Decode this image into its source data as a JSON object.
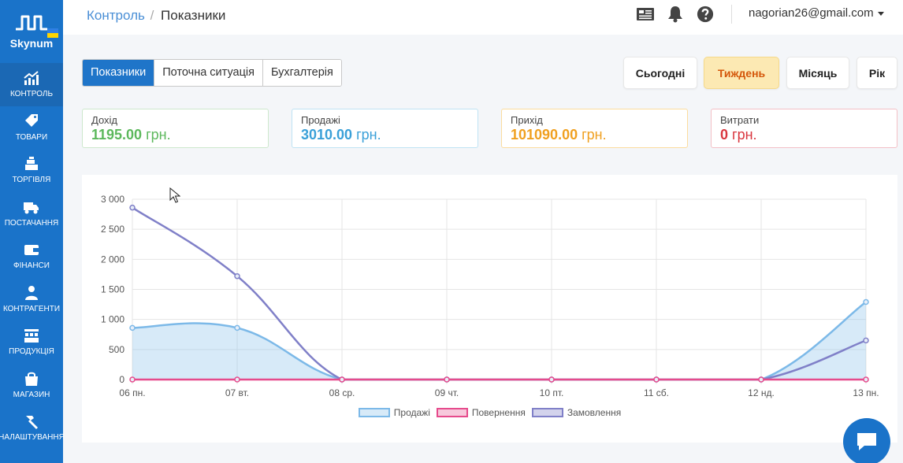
{
  "app": {
    "name": "Skynum"
  },
  "sidebar": {
    "items": [
      {
        "key": "control",
        "label": "Контроль",
        "icon": "chart-up-icon",
        "active": true
      },
      {
        "key": "goods",
        "label": "Товари",
        "icon": "tags-icon"
      },
      {
        "key": "trade",
        "label": "Торгівля",
        "icon": "cash-register-icon"
      },
      {
        "key": "supply",
        "label": "Постачання",
        "icon": "truck-icon"
      },
      {
        "key": "finance",
        "label": "Фінанси",
        "icon": "wallet-icon"
      },
      {
        "key": "contractors",
        "label": "Контрагенти",
        "icon": "person-icon"
      },
      {
        "key": "production",
        "label": "Продукція",
        "icon": "factory-icon"
      },
      {
        "key": "shop",
        "label": "Магазин",
        "icon": "shopping-bag-icon"
      },
      {
        "key": "settings",
        "label": "Налаштування",
        "icon": "hammer-icon"
      }
    ]
  },
  "header": {
    "breadcrumb_parent": "Контроль",
    "breadcrumb_sep": "/",
    "breadcrumb_current": "Показники",
    "user_email": "nagorian26@gmail.com"
  },
  "tabs": [
    {
      "label": "Показники",
      "active": true
    },
    {
      "label": "Поточна ситуація",
      "active": false
    },
    {
      "label": "Бухгалтерія",
      "active": false
    }
  ],
  "periods": [
    {
      "label": "Сьогодні",
      "active": false
    },
    {
      "label": "Тиждень",
      "active": true
    },
    {
      "label": "Місяць",
      "active": false
    },
    {
      "label": "Рік",
      "active": false
    }
  ],
  "cards": [
    {
      "label": "Дохід",
      "value": "1195.00",
      "unit": "грн.",
      "color": "#5cb85c",
      "border": "#cde8cd"
    },
    {
      "label": "Продажі",
      "value": "3010.00",
      "unit": "грн.",
      "color": "#3aa0d8",
      "border": "#bfe3f4"
    },
    {
      "label": "Прихід",
      "value": "101090.00",
      "unit": "грн.",
      "color": "#f0a020",
      "border": "#fbdc9e"
    },
    {
      "label": "Витрати",
      "value": "0",
      "unit": "грн.",
      "color": "#d9363e",
      "border": "#f3c0c6"
    }
  ],
  "chart_data": {
    "type": "line",
    "categories": [
      "06 пн.",
      "07 вт.",
      "08 ср.",
      "09 чт.",
      "10 пт.",
      "11 сб.",
      "12 нд.",
      "13 пн."
    ],
    "ylim": [
      0,
      3000
    ],
    "yticks": [
      0,
      500,
      1000,
      1500,
      2000,
      2500,
      3000
    ],
    "ytick_labels": [
      "0",
      "500",
      "1 000",
      "1 500",
      "2 000",
      "2 500",
      "3 000"
    ],
    "grid": true,
    "legend_position": "bottom",
    "series": [
      {
        "name": "Продажі",
        "values": [
          860,
          860,
          0,
          0,
          0,
          0,
          0,
          1290
        ],
        "color": "#7cb9e8",
        "fill": "rgba(124,185,232,0.3)"
      },
      {
        "name": "Повернення",
        "values": [
          0,
          0,
          0,
          0,
          0,
          0,
          0,
          0
        ],
        "color": "#e64b8c",
        "fill": "rgba(230,75,140,0.3)"
      },
      {
        "name": "Замовлення",
        "values": [
          2860,
          1720,
          0,
          0,
          0,
          0,
          0,
          650
        ],
        "color": "#8080c8",
        "fill": "none"
      }
    ]
  }
}
